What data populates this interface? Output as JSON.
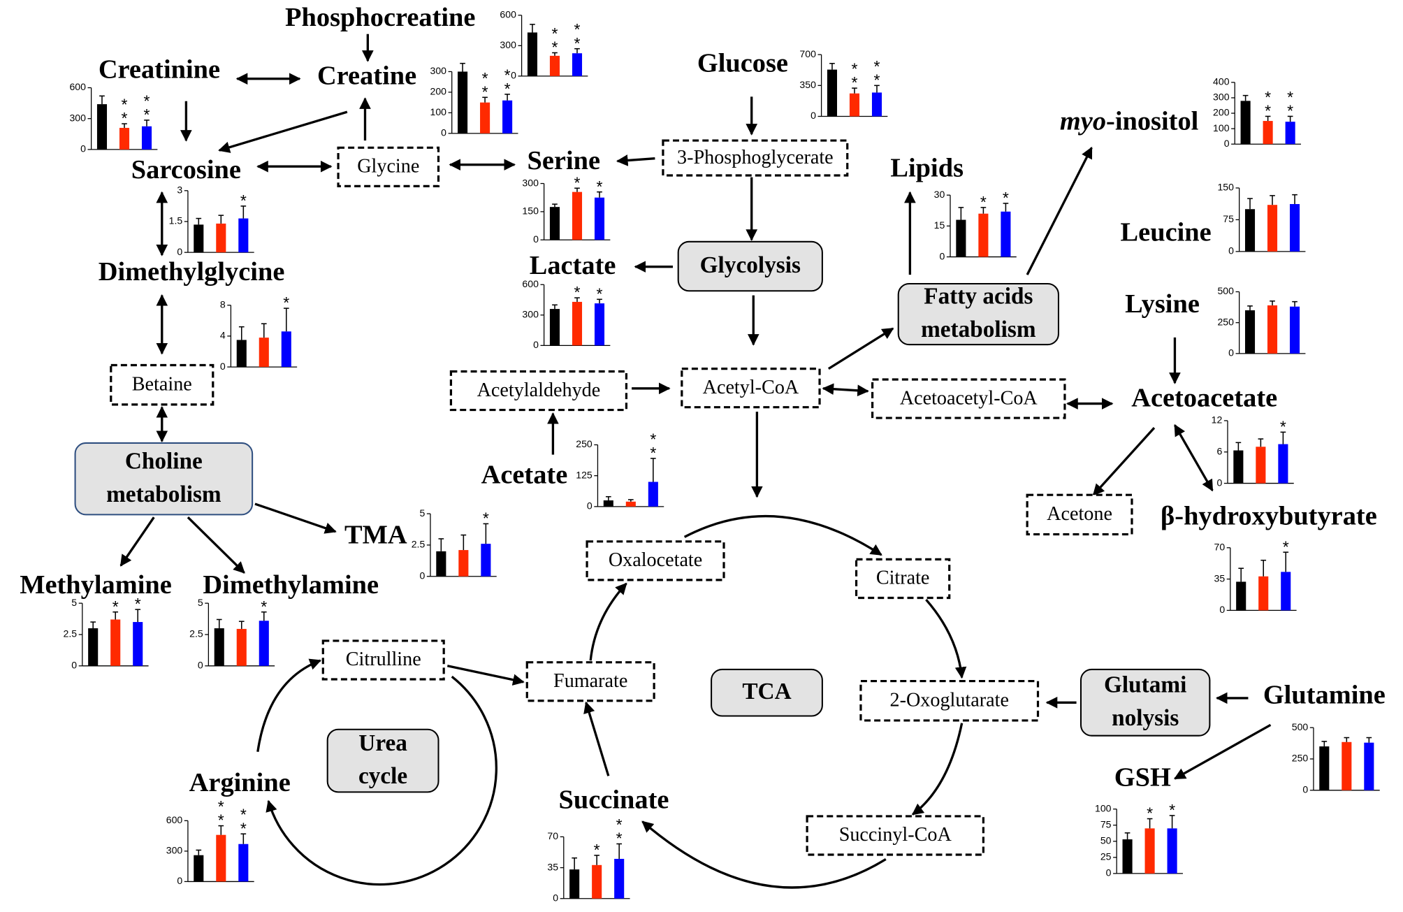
{
  "bar_colors": [
    "#000000",
    "#ff2a00",
    "#0000ff"
  ],
  "nodes": [
    {
      "label": "Phosphocreatine"
    },
    {
      "label": "Creatine"
    },
    {
      "label": "Creatinine"
    },
    {
      "label": "Sarcosine"
    },
    {
      "label": "Dimethylglycine"
    },
    {
      "label": "Glucose"
    },
    {
      "label": "Serine"
    },
    {
      "label": "Lactate"
    },
    {
      "label": "Lipids"
    },
    {
      "italic": "myo",
      "label": "-inositol"
    },
    {
      "label": "Leucine"
    },
    {
      "label": "Lysine"
    },
    {
      "label": "Acetoacetate"
    },
    {
      "label": "Acetate"
    },
    {
      "label": "TMA"
    },
    {
      "label": "β-hydroxybutyrate"
    },
    {
      "label": "Methylamine"
    },
    {
      "label": "Dimethylamine"
    },
    {
      "label": "Glutamine"
    },
    {
      "label": "GSH"
    },
    {
      "label": "Arginine"
    },
    {
      "label": "Succinate"
    }
  ],
  "boxes": [
    {
      "label": "Glycine"
    },
    {
      "label": "3-Phosphoglycerate"
    },
    {
      "label": "Betaine"
    },
    {
      "label": "Acetylaldehyde"
    },
    {
      "label": "Acetyl-CoA"
    },
    {
      "label": "Acetoacetyl-CoA"
    },
    {
      "label": "Acetone"
    },
    {
      "label": "Oxalocetate"
    },
    {
      "label": "Citrate"
    },
    {
      "label": "Citrulline"
    },
    {
      "label": "Fumarate"
    },
    {
      "label": "2-Oxoglutarate"
    },
    {
      "label": "Succinyl-CoA"
    }
  ],
  "pathways": [
    {
      "lines": [
        "Glycolysis"
      ]
    },
    {
      "lines": [
        "Fatty acids",
        "metabolism"
      ]
    },
    {
      "lines": [
        "Choline",
        "metabolism"
      ]
    },
    {
      "lines": [
        "TCA"
      ]
    },
    {
      "lines": [
        "Urea",
        "cycle"
      ]
    },
    {
      "lines": [
        "Glutami",
        "nolysis"
      ]
    }
  ],
  "charts": [
    {
      "ylim": [
        0,
        600
      ],
      "yticks": [
        0,
        300,
        600
      ],
      "values": [
        430,
        200,
        225
      ],
      "errors": [
        80,
        30,
        45
      ],
      "stars": [
        null,
        "**",
        "**"
      ]
    },
    {
      "ylim": [
        0,
        300
      ],
      "yticks": [
        0,
        100,
        200,
        300
      ],
      "values": [
        300,
        150,
        160
      ],
      "errors": [
        40,
        25,
        30
      ],
      "stars": [
        null,
        "**",
        "**"
      ]
    },
    {
      "ylim": [
        0,
        600
      ],
      "yticks": [
        0,
        300,
        600
      ],
      "values": [
        440,
        210,
        225
      ],
      "errors": [
        80,
        40,
        60
      ],
      "stars": [
        null,
        "**",
        "**"
      ]
    },
    {
      "ylim": [
        0,
        700
      ],
      "yticks": [
        0,
        350,
        700
      ],
      "values": [
        530,
        260,
        270
      ],
      "errors": [
        70,
        60,
        80
      ],
      "stars": [
        null,
        "**",
        "**"
      ]
    },
    {
      "ylim": [
        0,
        3
      ],
      "yticks": [
        0,
        1.5,
        3
      ],
      "values": [
        1.35,
        1.4,
        1.65
      ],
      "errors": [
        0.3,
        0.4,
        0.6
      ],
      "stars": [
        null,
        null,
        "*"
      ]
    },
    {
      "ylim": [
        0,
        300
      ],
      "yticks": [
        0,
        150,
        300
      ],
      "values": [
        175,
        255,
        225
      ],
      "errors": [
        15,
        20,
        30
      ],
      "stars": [
        null,
        "*",
        "*"
      ]
    },
    {
      "ylim": [
        0,
        30
      ],
      "yticks": [
        0,
        15,
        30
      ],
      "values": [
        18,
        21,
        22
      ],
      "errors": [
        6,
        3,
        4
      ],
      "stars": [
        null,
        "*",
        "*"
      ]
    },
    {
      "ylim": [
        0,
        400
      ],
      "yticks": [
        0,
        100,
        200,
        300,
        400
      ],
      "values": [
        280,
        150,
        145
      ],
      "errors": [
        35,
        30,
        35
      ],
      "stars": [
        null,
        "**",
        "**"
      ]
    },
    {
      "ylim": [
        0,
        150
      ],
      "yticks": [
        0,
        75,
        150
      ],
      "values": [
        100,
        110,
        112
      ],
      "errors": [
        25,
        22,
        22
      ],
      "stars": [
        null,
        null,
        null
      ]
    },
    {
      "ylim": [
        0,
        600
      ],
      "yticks": [
        0,
        300,
        600
      ],
      "values": [
        360,
        430,
        415
      ],
      "errors": [
        40,
        40,
        40
      ],
      "stars": [
        null,
        "*",
        "*"
      ]
    },
    {
      "ylim": [
        0,
        8
      ],
      "yticks": [
        0,
        4,
        8
      ],
      "values": [
        3.5,
        3.8,
        4.6
      ],
      "errors": [
        1.7,
        1.8,
        3
      ],
      "stars": [
        null,
        null,
        "*"
      ]
    },
    {
      "ylim": [
        0,
        500
      ],
      "yticks": [
        0,
        250,
        500
      ],
      "values": [
        350,
        390,
        380
      ],
      "errors": [
        35,
        35,
        40
      ],
      "stars": [
        null,
        null,
        null
      ]
    },
    {
      "ylim": [
        0,
        250
      ],
      "yticks": [
        0,
        125,
        250
      ],
      "values": [
        25,
        20,
        100
      ],
      "errors": [
        15,
        8,
        95
      ],
      "stars": [
        null,
        null,
        "**"
      ]
    },
    {
      "ylim": [
        0,
        5
      ],
      "yticks": [
        0,
        2.5,
        5
      ],
      "values": [
        2,
        2.1,
        2.6
      ],
      "errors": [
        1,
        1.2,
        1.6
      ],
      "stars": [
        null,
        null,
        "*"
      ]
    },
    {
      "ylim": [
        0,
        12
      ],
      "yticks": [
        0,
        6,
        12
      ],
      "values": [
        6.3,
        7,
        7.5
      ],
      "errors": [
        1.5,
        1.5,
        2.3
      ],
      "stars": [
        null,
        null,
        "*"
      ]
    },
    {
      "ylim": [
        0,
        70
      ],
      "yticks": [
        0,
        35,
        70
      ],
      "values": [
        32,
        38,
        43
      ],
      "errors": [
        15,
        18,
        22
      ],
      "stars": [
        null,
        null,
        "*"
      ]
    },
    {
      "ylim": [
        0,
        5
      ],
      "yticks": [
        0,
        2.5,
        5
      ],
      "values": [
        3,
        3.7,
        3.5
      ],
      "errors": [
        0.5,
        0.6,
        1
      ],
      "stars": [
        null,
        "*",
        "*"
      ]
    },
    {
      "ylim": [
        0,
        5
      ],
      "yticks": [
        0,
        2.5,
        5
      ],
      "values": [
        3,
        2.95,
        3.6
      ],
      "errors": [
        0.7,
        0.6,
        0.7
      ],
      "stars": [
        null,
        null,
        "*"
      ]
    },
    {
      "ylim": [
        0,
        500
      ],
      "yticks": [
        0,
        250,
        500
      ],
      "values": [
        350,
        385,
        380
      ],
      "errors": [
        40,
        35,
        40
      ],
      "stars": [
        null,
        null,
        null
      ]
    },
    {
      "ylim": [
        0,
        600
      ],
      "yticks": [
        0,
        300,
        600
      ],
      "values": [
        260,
        460,
        370
      ],
      "errors": [
        50,
        90,
        100
      ],
      "stars": [
        null,
        "**",
        "**"
      ]
    },
    {
      "ylim": [
        0,
        70
      ],
      "yticks": [
        0,
        35,
        70
      ],
      "values": [
        33,
        38,
        45
      ],
      "errors": [
        13,
        11,
        17
      ],
      "stars": [
        null,
        "*",
        "**"
      ]
    },
    {
      "ylim": [
        0,
        100
      ],
      "yticks": [
        0,
        25,
        50,
        75,
        100
      ],
      "values": [
        53,
        70,
        70
      ],
      "errors": [
        10,
        15,
        20
      ],
      "stars": [
        null,
        "*",
        "*"
      ]
    }
  ]
}
